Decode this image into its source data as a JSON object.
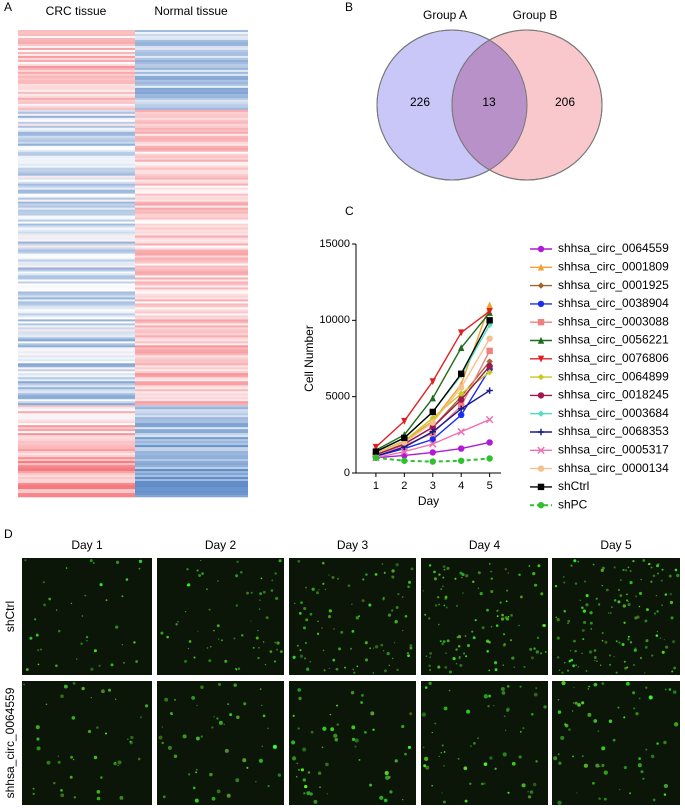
{
  "panel_labels": [
    "A",
    "B",
    "C",
    "D"
  ],
  "heatmap": {
    "columns": [
      "CRC tissue",
      "Normal tissue"
    ]
  },
  "venn": {
    "sets": [
      {
        "name": "Group A",
        "only": 226
      },
      {
        "name": "Group B",
        "only": 206
      }
    ],
    "overlap": 13
  },
  "chart_data": {
    "type": "line",
    "x_label": "Day",
    "y_label": "Cell Number",
    "x": [
      1,
      2,
      3,
      4,
      5
    ],
    "xlim": [
      0.3,
      5.4
    ],
    "xticks": [
      1,
      2,
      3,
      4,
      5
    ],
    "ylim": [
      0,
      15000
    ],
    "yticks": [
      0,
      5000,
      10000,
      15000
    ],
    "series": [
      {
        "name": "shhsa_circ_0064559",
        "color": "#b01ad6",
        "marker": "circle",
        "values": [
          1000,
          1150,
          1350,
          1600,
          2000
        ]
      },
      {
        "name": "shhsa_circ_0001809",
        "color": "#f5a030",
        "marker": "triangle",
        "values": [
          1300,
          2100,
          3400,
          5800,
          11000
        ]
      },
      {
        "name": "shhsa_circ_0001925",
        "color": "#a0652a",
        "marker": "diamond",
        "values": [
          1200,
          1900,
          3000,
          5000,
          7300
        ]
      },
      {
        "name": "shhsa_circ_0038904",
        "color": "#1a2ef0",
        "marker": "circle",
        "values": [
          1100,
          1600,
          2200,
          3800,
          6800
        ]
      },
      {
        "name": "shhsa_circ_0003088",
        "color": "#f08080",
        "marker": "square",
        "values": [
          1200,
          1800,
          2600,
          4400,
          8000
        ]
      },
      {
        "name": "shhsa_circ_0056221",
        "color": "#1f6b1f",
        "marker": "triangle",
        "values": [
          1500,
          2500,
          4900,
          8200,
          10500
        ]
      },
      {
        "name": "shhsa_circ_0076806",
        "color": "#e02020",
        "marker": "triangle-down",
        "values": [
          1700,
          3400,
          6000,
          9200,
          10600
        ]
      },
      {
        "name": "shhsa_circ_0064899",
        "color": "#c8c820",
        "marker": "diamond",
        "values": [
          1300,
          2100,
          3600,
          5200,
          6600
        ]
      },
      {
        "name": "shhsa_circ_0018245",
        "color": "#a01850",
        "marker": "circle",
        "values": [
          1200,
          1900,
          3000,
          4800,
          7000
        ]
      },
      {
        "name": "shhsa_circ_0003684",
        "color": "#50e0c0",
        "marker": "diamond",
        "values": [
          1400,
          2300,
          4000,
          6400,
          9700
        ]
      },
      {
        "name": "shhsa_circ_0068353",
        "color": "#1a1a8c",
        "marker": "plus",
        "values": [
          1100,
          1700,
          2700,
          4200,
          5400
        ]
      },
      {
        "name": "shhsa_circ_0005317",
        "color": "#f070b0",
        "marker": "x",
        "values": [
          1000,
          1400,
          1900,
          2700,
          3500
        ]
      },
      {
        "name": "shhsa_circ_0000134",
        "color": "#f5c090",
        "marker": "circle",
        "values": [
          1300,
          2000,
          3300,
          5600,
          8800
        ]
      },
      {
        "name": "shCtrl",
        "color": "#000000",
        "marker": "square",
        "values": [
          1400,
          2300,
          4000,
          6500,
          10000
        ]
      },
      {
        "name": "shPC",
        "color": "#2ec02e",
        "marker": "circle",
        "dashed": true,
        "values": [
          1000,
          800,
          750,
          800,
          950
        ]
      }
    ]
  },
  "micrographs": {
    "days": [
      "Day 1",
      "Day 2",
      "Day 3",
      "Day 4",
      "Day 5"
    ],
    "rows": [
      "shCtrl",
      "shhsa_circ_0064559"
    ]
  }
}
